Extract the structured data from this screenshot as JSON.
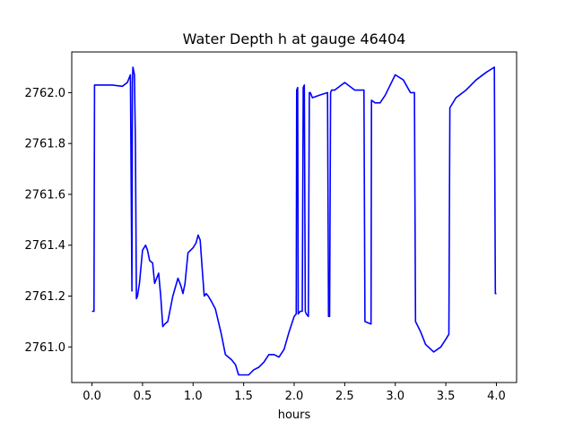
{
  "chart_data": {
    "type": "line",
    "title": "Water Depth h at gauge 46404",
    "xlabel": "hours",
    "ylabel": "",
    "xlim": [
      -0.2,
      4.2
    ],
    "ylim": [
      2760.86,
      2762.16
    ],
    "xticks": [
      0.0,
      0.5,
      1.0,
      1.5,
      2.0,
      2.5,
      3.0,
      3.5,
      4.0
    ],
    "xtick_labels": [
      "0.0",
      "0.5",
      "1.0",
      "1.5",
      "2.0",
      "2.5",
      "3.0",
      "3.5",
      "4.0"
    ],
    "yticks": [
      2761.0,
      2761.2,
      2761.4,
      2761.6,
      2761.8,
      2762.0
    ],
    "ytick_labels": [
      "2761.0",
      "2761.2",
      "2761.4",
      "2761.6",
      "2761.8",
      "2762.0"
    ],
    "grid": false,
    "series": [
      {
        "color": "#0000ff",
        "x": [
          0.0,
          0.02,
          0.025,
          0.1,
          0.2,
          0.3,
          0.35,
          0.38,
          0.395,
          0.4,
          0.405,
          0.42,
          0.43,
          0.44,
          0.45,
          0.47,
          0.5,
          0.53,
          0.55,
          0.57,
          0.6,
          0.62,
          0.64,
          0.66,
          0.68,
          0.7,
          0.72,
          0.75,
          0.8,
          0.85,
          0.88,
          0.9,
          0.92,
          0.95,
          1.0,
          1.03,
          1.05,
          1.07,
          1.09,
          1.11,
          1.13,
          1.15,
          1.18,
          1.22,
          1.28,
          1.32,
          1.38,
          1.42,
          1.45,
          1.5,
          1.55,
          1.6,
          1.65,
          1.7,
          1.75,
          1.8,
          1.85,
          1.9,
          1.95,
          2.0,
          2.02,
          2.025,
          2.035,
          2.04,
          2.06,
          2.08,
          2.09,
          2.1,
          2.11,
          2.12,
          2.14,
          2.15,
          2.16,
          2.18,
          2.25,
          2.33,
          2.34,
          2.345,
          2.35,
          2.36,
          2.37,
          2.4,
          2.5,
          2.6,
          2.69,
          2.7,
          2.76,
          2.765,
          2.8,
          2.85,
          2.9,
          3.0,
          3.08,
          3.15,
          3.19,
          3.2,
          3.25,
          3.3,
          3.38,
          3.45,
          3.5,
          3.53,
          3.54,
          3.6,
          3.7,
          3.8,
          3.9,
          3.98,
          3.99,
          4.0
        ],
        "y": [
          2761.14,
          2761.14,
          2762.03,
          2762.03,
          2762.03,
          2762.025,
          2762.04,
          2762.07,
          2761.22,
          2762.04,
          2762.1,
          2762.07,
          2761.8,
          2761.19,
          2761.2,
          2761.25,
          2761.38,
          2761.4,
          2761.38,
          2761.34,
          2761.33,
          2761.25,
          2761.27,
          2761.29,
          2761.2,
          2761.08,
          2761.09,
          2761.1,
          2761.2,
          2761.27,
          2761.24,
          2761.21,
          2761.25,
          2761.37,
          2761.39,
          2761.41,
          2761.44,
          2761.42,
          2761.31,
          2761.2,
          2761.21,
          2761.2,
          2761.18,
          2761.15,
          2761.05,
          2760.97,
          2760.95,
          2760.93,
          2760.89,
          2760.89,
          2760.89,
          2760.91,
          2760.92,
          2760.94,
          2760.97,
          2760.97,
          2760.96,
          2760.99,
          2761.06,
          2761.12,
          2761.13,
          2762.01,
          2762.02,
          2761.13,
          2761.14,
          2761.14,
          2762.02,
          2762.03,
          2761.14,
          2761.13,
          2761.12,
          2762.0,
          2762.0,
          2761.98,
          2761.99,
          2762.0,
          2761.12,
          2761.12,
          2761.12,
          2762.0,
          2762.01,
          2762.01,
          2762.04,
          2762.01,
          2762.01,
          2761.1,
          2761.09,
          2761.97,
          2761.96,
          2761.96,
          2761.99,
          2762.07,
          2762.05,
          2762.0,
          2762.0,
          2761.1,
          2761.06,
          2761.01,
          2760.98,
          2761.0,
          2761.03,
          2761.05,
          2761.94,
          2761.98,
          2762.01,
          2762.05,
          2762.08,
          2762.1,
          2761.21,
          2761.21
        ]
      }
    ]
  }
}
